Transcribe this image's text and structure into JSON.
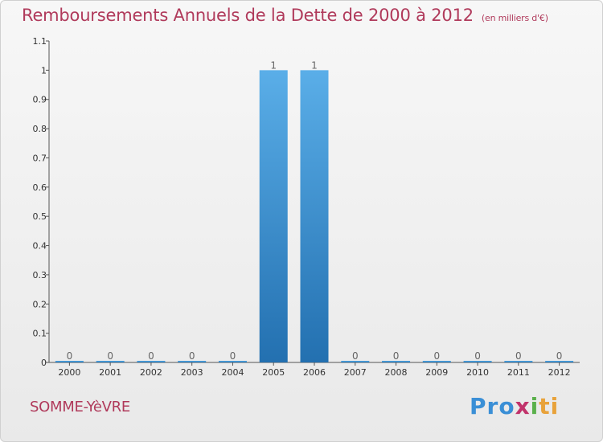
{
  "header": {
    "title": "Remboursements Annuels de la Dette de 2000 à 2012",
    "units": "(en milliers d'€)"
  },
  "footer": {
    "commune": "SOMME-YèVRE",
    "logo": {
      "p1": "Pro",
      "p2": "x",
      "p3": "i",
      "p4": "ti"
    }
  },
  "colors": {
    "title": "#b03a5b",
    "bar_top": "#5aaee8",
    "bar_bottom": "#2370b0"
  },
  "chart_data": {
    "type": "bar",
    "title": "Remboursements Annuels de la Dette de 2000 à 2012",
    "xlabel": "",
    "ylabel": "",
    "categories": [
      "2000",
      "2001",
      "2002",
      "2003",
      "2004",
      "2005",
      "2006",
      "2007",
      "2008",
      "2009",
      "2010",
      "2011",
      "2012"
    ],
    "values": [
      0,
      0,
      0,
      0,
      0,
      1,
      1,
      0,
      0,
      0,
      0,
      0,
      0
    ],
    "value_labels": [
      "0",
      "0",
      "0",
      "0",
      "0",
      "1",
      "1",
      "0",
      "0",
      "0",
      "0",
      "0",
      "0"
    ],
    "ylim": [
      0,
      1.1
    ],
    "yticks": [
      0,
      0.1,
      0.2,
      0.3,
      0.4,
      0.5,
      0.6,
      0.7,
      0.8,
      0.9,
      1,
      1.1
    ],
    "ytick_labels": [
      "0",
      "0.1",
      "0.2",
      "0.3",
      "0.4",
      "0.5",
      "0.6",
      "0.7",
      "0.8",
      "0.9",
      "1",
      "1.1"
    ],
    "grid": false
  }
}
